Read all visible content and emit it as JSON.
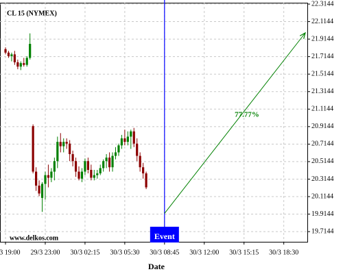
{
  "chart_data": {
    "type": "candlestick",
    "title": "CL 15 (NYMEX)",
    "x_label": "Date",
    "watermark": "www.delkos.com",
    "x": [
      0,
      1,
      2,
      3,
      4,
      5,
      6,
      7,
      8,
      9,
      10,
      11,
      12,
      13,
      14,
      15,
      16,
      17,
      18,
      19,
      20,
      21,
      22,
      23,
      24,
      25,
      26,
      27,
      28,
      29,
      30,
      31,
      32,
      33,
      34,
      35,
      36,
      37,
      38,
      39,
      40,
      41,
      42,
      43,
      44,
      45,
      46
    ],
    "open": [
      21.8,
      21.76,
      21.72,
      21.74,
      21.65,
      21.6,
      21.64,
      21.62,
      21.7,
      20.92,
      20.4,
      20.24,
      20.1,
      20.26,
      20.36,
      20.33,
      20.4,
      20.52,
      20.74,
      20.69,
      20.74,
      20.72,
      20.6,
      20.52,
      20.4,
      20.32,
      20.4,
      20.52,
      20.42,
      20.33,
      20.36,
      20.38,
      20.44,
      20.52,
      20.56,
      20.45,
      20.58,
      20.62,
      20.7,
      20.78,
      20.74,
      20.8,
      20.86,
      20.72,
      20.58,
      20.45,
      20.38
    ],
    "high": [
      21.82,
      21.78,
      21.76,
      21.78,
      21.68,
      21.66,
      21.7,
      21.72,
      21.98,
      20.94,
      20.45,
      20.3,
      20.28,
      20.4,
      20.48,
      20.44,
      20.56,
      20.8,
      20.84,
      20.78,
      20.78,
      20.76,
      20.64,
      20.56,
      20.46,
      20.44,
      20.55,
      20.56,
      20.48,
      20.42,
      20.42,
      20.48,
      20.54,
      20.6,
      20.62,
      20.62,
      20.68,
      20.72,
      20.82,
      20.88,
      20.86,
      20.88,
      20.9,
      20.78,
      20.62,
      20.5,
      20.4
    ],
    "low": [
      21.74,
      21.7,
      21.66,
      21.62,
      21.57,
      21.56,
      21.6,
      21.6,
      21.68,
      20.38,
      20.18,
      20.12,
      19.94,
      20.08,
      20.22,
      20.28,
      20.3,
      20.44,
      20.62,
      20.62,
      20.66,
      20.52,
      20.46,
      20.34,
      20.3,
      20.28,
      20.36,
      20.38,
      20.3,
      20.3,
      20.32,
      20.36,
      20.4,
      20.44,
      20.4,
      20.4,
      20.54,
      20.58,
      20.66,
      20.7,
      20.7,
      20.66,
      20.68,
      20.52,
      20.4,
      20.32,
      20.2
    ],
    "close": [
      21.76,
      21.72,
      21.74,
      21.65,
      21.6,
      21.64,
      21.62,
      21.7,
      21.86,
      20.4,
      20.24,
      20.15,
      20.26,
      20.36,
      20.33,
      20.4,
      20.52,
      20.74,
      20.69,
      20.74,
      20.72,
      20.6,
      20.52,
      20.4,
      20.32,
      20.4,
      20.52,
      20.42,
      20.33,
      20.36,
      20.38,
      20.44,
      20.52,
      20.56,
      20.45,
      20.58,
      20.62,
      20.7,
      20.78,
      20.74,
      20.8,
      20.86,
      20.72,
      20.58,
      20.45,
      20.38,
      20.22
    ],
    "up_color": "#008000",
    "down_color": "#8b0000",
    "xlim": [
      -1.8,
      98.7
    ],
    "xticks": [
      {
        "value": 0,
        "label": "29/3 19:00"
      },
      {
        "value": 13,
        "label": "29/3 23:00"
      },
      {
        "value": 26,
        "label": "30/3 02:15"
      },
      {
        "value": 39,
        "label": "30/3 05:30"
      },
      {
        "value": 52,
        "label": "30/3 08:45"
      },
      {
        "value": 65,
        "label": "30/3 12:00"
      },
      {
        "value": 78,
        "label": "30/3 15:15"
      },
      {
        "value": 91,
        "label": "30/3 18:30"
      }
    ],
    "ylim": [
      19.598,
      22.33
    ],
    "yticks": [
      22.3144,
      22.1144,
      21.9144,
      21.7144,
      21.5144,
      21.3144,
      21.1144,
      20.9144,
      20.7144,
      20.5144,
      20.3144,
      20.1144,
      19.9144,
      19.7144
    ],
    "grid": true,
    "event": {
      "x": 52,
      "label": "Event",
      "color": "#0000ff"
    },
    "forecast": {
      "label": "77.77%",
      "color": "#008000"
    }
  }
}
